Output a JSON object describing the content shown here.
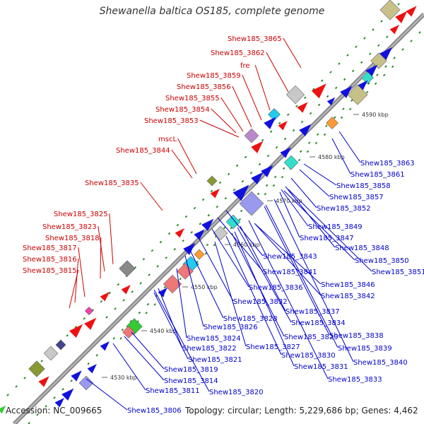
{
  "title": "Shewanella baltica OS185, complete genome",
  "accession": "Accession: NC_009665",
  "summary": "Topology: circular; Length: 5,229,686 bp; Genes: 4,462",
  "ticks": [
    "4590 kbp",
    "4580 kbp",
    "4570 kbp",
    "4560 kbp",
    "4550 kbp",
    "4540 kbp",
    "4530 kbp"
  ],
  "labels_top": [
    "Shew185_3865",
    "Shew185_3862",
    "fre",
    "Shew185_3859",
    "Shew185_3856",
    "Shew185_3855",
    "Shew185_3854",
    "Shew185_3853",
    "mscL",
    "Shew185_3844",
    "Shew185_3835",
    "Shew185_3825",
    "Shew185_3823",
    "Shew185_3818",
    "Shew185_3817",
    "Shew185_3816",
    "Shew185_3815"
  ],
  "labels_bottom": [
    "Shew185_3863",
    "Shew185_3861",
    "Shew185_3858",
    "Shew185_3857",
    "Shew185_3852",
    "Shew185_3849",
    "Shew185_3847",
    "Shew185_3848",
    "Shew185_3843",
    "Shew185_3850",
    "Shew185_3841",
    "Shew185_3851",
    "Shew185_3846",
    "Shew185_3836",
    "Shew185_3842",
    "Shew185_3832",
    "Shew185_3837",
    "Shew185_3828",
    "Shew185_3834",
    "Shew185_3826",
    "Shew185_3829",
    "Shew185_3838",
    "Shew185_3824",
    "Shew185_3839",
    "Shew185_3827",
    "Shew185_3822",
    "Shew185_3830",
    "Shew185_3821",
    "Shew185_3840",
    "Shew185_3831",
    "Shew185_3819",
    "Shew185_3833",
    "Shew185_3814",
    "Shew185_3811",
    "Shew185_3820",
    "Shew185_3806"
  ],
  "colors": {
    "forward": "#ee1111",
    "reverse": "#1111dd",
    "axis": "#999999",
    "label_top": "#cc0000",
    "label_bottom": "#0000cc",
    "tick_text": "#333333"
  }
}
